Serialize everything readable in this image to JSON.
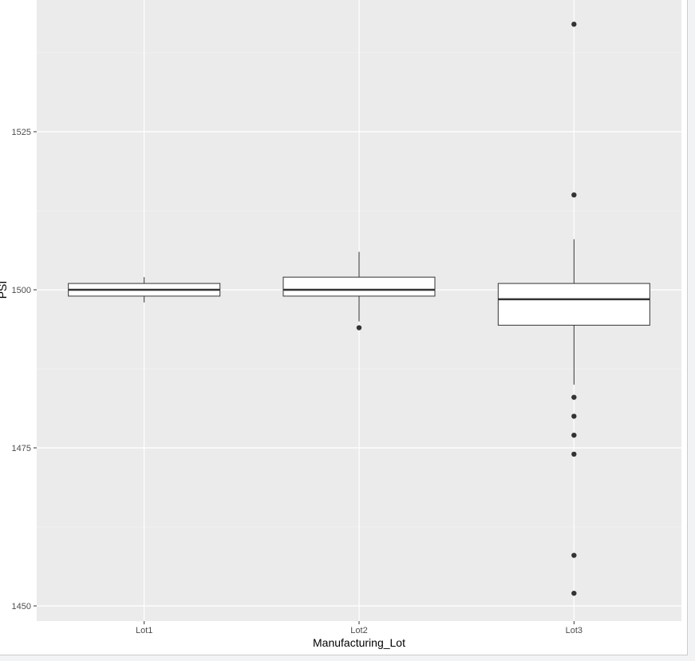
{
  "colors": {
    "panel_background": "#ebebeb",
    "grid_major": "#ffffff",
    "grid_minor": "#f5f5f5",
    "box_fill": "#ffffff",
    "box_stroke": "#333333",
    "outlier": "#333333",
    "tick_label": "#4d4d4d"
  },
  "chart_data": {
    "type": "boxplot",
    "title": "",
    "xlabel": "Manufacturing_Lot",
    "ylabel": "PSI",
    "ylim": [
      1448,
      1550
    ],
    "yticks": [
      1450,
      1475,
      1500,
      1525
    ],
    "minor_breaks": [
      1462.5,
      1487.5,
      1512.5,
      1537.5
    ],
    "grid": true,
    "legend": "none",
    "categories": [
      "Lot1",
      "Lot2",
      "Lot3"
    ],
    "boxes": [
      {
        "category": "Lot1",
        "whisker_low": 1498,
        "q1": 1499,
        "median": 1500,
        "q3": 1501,
        "whisker_high": 1502,
        "outliers": []
      },
      {
        "category": "Lot2",
        "whisker_low": 1495,
        "q1": 1499,
        "median": 1500,
        "q3": 1502,
        "whisker_high": 1506,
        "outliers": [
          1494
        ]
      },
      {
        "category": "Lot3",
        "whisker_low": 1485,
        "q1": 1494.4,
        "median": 1498.5,
        "q3": 1501,
        "whisker_high": 1508,
        "outliers": [
          1542,
          1515,
          1483,
          1480,
          1477,
          1474,
          1458,
          1452
        ]
      }
    ]
  }
}
